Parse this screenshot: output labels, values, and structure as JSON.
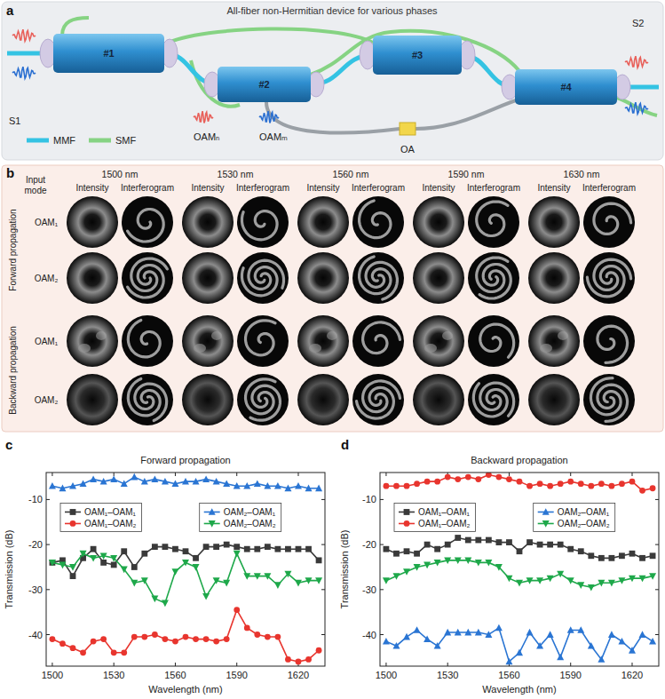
{
  "diagram": {
    "panel_label": "a",
    "title": "All-fiber non-Hermitian device for various phases",
    "components": [
      "#1",
      "#2",
      "#3",
      "#4"
    ],
    "ports": [
      "S1",
      "S2"
    ],
    "fibers": [
      "MMF",
      "SMF"
    ],
    "modes": [
      "OAMₙ",
      "OAMₘ"
    ],
    "amplifier": "OA"
  },
  "image_grid": {
    "panel_label": "b",
    "header": "Input mode",
    "wavelengths": [
      "1500 nm",
      "1530 nm",
      "1560 nm",
      "1590 nm",
      "1630 nm"
    ],
    "subheaders": [
      "Intensity",
      "Interferogram"
    ],
    "groups": [
      {
        "label": "Forward propagation",
        "rows": [
          "OAM₁",
          "OAM₂"
        ]
      },
      {
        "label": "Backward propagation",
        "rows": [
          "OAM₁",
          "OAM₂"
        ]
      }
    ]
  },
  "chart_data": [
    {
      "type": "line",
      "panel_label": "c",
      "title": "Forward propagation",
      "x_label": "Wavelength (nm)",
      "y_label": "Transmission (dB)",
      "x": [
        1500,
        1505,
        1510,
        1515,
        1520,
        1525,
        1530,
        1535,
        1540,
        1545,
        1550,
        1555,
        1560,
        1565,
        1570,
        1575,
        1580,
        1585,
        1590,
        1595,
        1600,
        1605,
        1610,
        1615,
        1620,
        1625,
        1630
      ],
      "xlim": [
        1497,
        1633
      ],
      "xticks": [
        1500,
        1530,
        1560,
        1590,
        1620
      ],
      "ylim": [
        -47,
        -4
      ],
      "yticks": [
        -40,
        -30,
        -20,
        -10
      ],
      "legend": "top",
      "series": [
        {
          "name": "OAM₁–OAM₁",
          "color": "#3a3a3a",
          "marker": "square",
          "line_style": "solid",
          "values": [
            -24,
            -23.5,
            -27,
            -23,
            -21,
            -24,
            -24.5,
            -21.5,
            -25,
            -22,
            -20.5,
            -20.5,
            -21,
            -21.5,
            -23,
            -20.5,
            -20.5,
            -20,
            -20.5,
            -21,
            -21,
            -20.5,
            -21,
            -21,
            -21,
            -21,
            -23.5
          ]
        },
        {
          "name": "OAM₁–OAM₂",
          "color": "#e8352e",
          "marker": "circle",
          "line_style": "solid",
          "values": [
            -41,
            -42,
            -43,
            -44,
            -41.5,
            -41,
            -44,
            -44,
            -40.5,
            -40.5,
            -40,
            -41,
            -41.5,
            -40.5,
            -41,
            -41,
            -41.5,
            -41,
            -34.5,
            -38.5,
            -40,
            -40.5,
            -40.5,
            -45.5,
            -46,
            -45.5,
            -43.5
          ]
        },
        {
          "name": "OAM₂–OAM₁",
          "color": "#2a75d3",
          "marker": "triangle",
          "line_style": "solid",
          "values": [
            -7,
            -7.5,
            -7,
            -6.5,
            -5.5,
            -6,
            -5.5,
            -6.5,
            -5,
            -6,
            -5.5,
            -6,
            -6.5,
            -6,
            -6,
            -5.5,
            -6,
            -6.5,
            -7,
            -7,
            -6.5,
            -7,
            -7,
            -7.5,
            -7,
            -7.5,
            -7.5
          ]
        },
        {
          "name": "OAM₂–OAM₂",
          "color": "#1ea84a",
          "marker": "triangle-down",
          "line_style": "solid",
          "values": [
            -24,
            -24.5,
            -25,
            -22,
            -23,
            -22.5,
            -23,
            -25.5,
            -28.5,
            -28,
            -32,
            -33,
            -26,
            -24,
            -25,
            -31.5,
            -28,
            -28.5,
            -22,
            -27,
            -27,
            -27,
            -29,
            -26.5,
            -28.5,
            -28,
            -28
          ]
        }
      ]
    },
    {
      "type": "line",
      "panel_label": "d",
      "title": "Backward propagation",
      "x_label": "Wavelength (nm)",
      "y_label": "Transmission (dB)",
      "x": [
        1500,
        1505,
        1510,
        1515,
        1520,
        1525,
        1530,
        1535,
        1540,
        1545,
        1550,
        1555,
        1560,
        1565,
        1570,
        1575,
        1580,
        1585,
        1590,
        1595,
        1600,
        1605,
        1610,
        1615,
        1620,
        1625,
        1630
      ],
      "xlim": [
        1497,
        1633
      ],
      "xticks": [
        1500,
        1530,
        1560,
        1590,
        1620
      ],
      "ylim": [
        -47,
        -4
      ],
      "yticks": [
        -40,
        -30,
        -20,
        -10
      ],
      "legend": "top",
      "series": [
        {
          "name": "OAM₁–OAM₁",
          "color": "#3a3a3a",
          "marker": "square",
          "line_style": "solid",
          "values": [
            -21,
            -22,
            -21.5,
            -22,
            -20,
            -21,
            -20,
            -18.5,
            -19,
            -19,
            -19,
            -19.5,
            -19.5,
            -21.5,
            -19.5,
            -20,
            -20,
            -20,
            -21,
            -21.5,
            -22.5,
            -23,
            -23,
            -22.5,
            -22,
            -23,
            -22.5
          ]
        },
        {
          "name": "OAM₁–OAM₂",
          "color": "#e8352e",
          "marker": "circle",
          "line_style": "solid",
          "values": [
            -7,
            -7,
            -7,
            -6.5,
            -6,
            -6,
            -5,
            -5.5,
            -5,
            -5.5,
            -4.5,
            -5,
            -5.5,
            -6,
            -7,
            -6.5,
            -7,
            -6.5,
            -6,
            -6.5,
            -7,
            -6.5,
            -7,
            -6.5,
            -6,
            -8,
            -7.5
          ]
        },
        {
          "name": "OAM₂–OAM₁",
          "color": "#2a75d3",
          "marker": "triangle",
          "line_style": "solid",
          "values": [
            -41.5,
            -42.5,
            -40.5,
            -39,
            -41,
            -42.5,
            -39.5,
            -39.5,
            -39.5,
            -39.5,
            -40,
            -38.5,
            -46,
            -44,
            -39.5,
            -42.5,
            -40,
            -45,
            -39,
            -39,
            -42.5,
            -45.5,
            -40,
            -41.5,
            -43.5,
            -40,
            -41.5
          ]
        },
        {
          "name": "OAM₂–OAM₂",
          "color": "#1ea84a",
          "marker": "triangle-down",
          "line_style": "solid",
          "values": [
            -28,
            -27,
            -26,
            -25,
            -24.5,
            -24,
            -23.5,
            -23.5,
            -23.5,
            -24,
            -24,
            -25,
            -27.5,
            -28.5,
            -28,
            -28,
            -27.5,
            -26.5,
            -28,
            -29,
            -29.5,
            -28.5,
            -28.5,
            -28,
            -27.5,
            -27.5,
            -27
          ]
        }
      ]
    }
  ]
}
